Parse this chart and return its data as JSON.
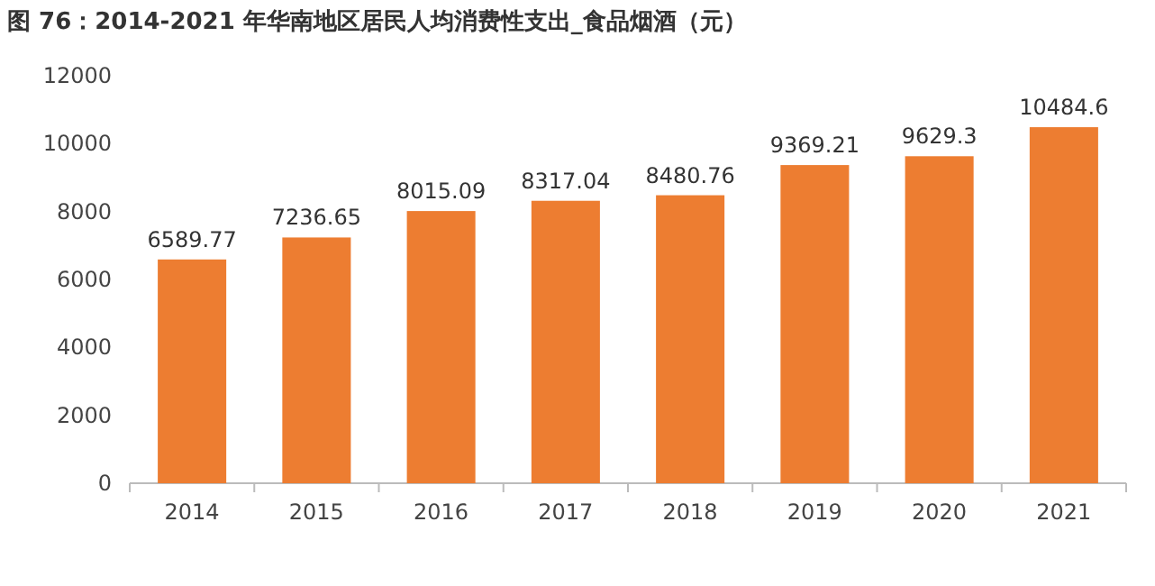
{
  "chart_data": {
    "type": "bar",
    "title": "图 76：2014-2021 年华南地区居民人均消费性支出_食品烟酒（元）",
    "categories": [
      "2014",
      "2015",
      "2016",
      "2017",
      "2018",
      "2019",
      "2020",
      "2021"
    ],
    "values": [
      6589.77,
      7236.65,
      8015.09,
      8317.04,
      8480.76,
      9369.21,
      9629.3,
      10484.6
    ],
    "color": "#ed7d31",
    "data_labels": true,
    "ylim": [
      0,
      12000
    ],
    "yticks": [
      0,
      2000,
      4000,
      6000,
      8000,
      10000,
      12000
    ]
  }
}
